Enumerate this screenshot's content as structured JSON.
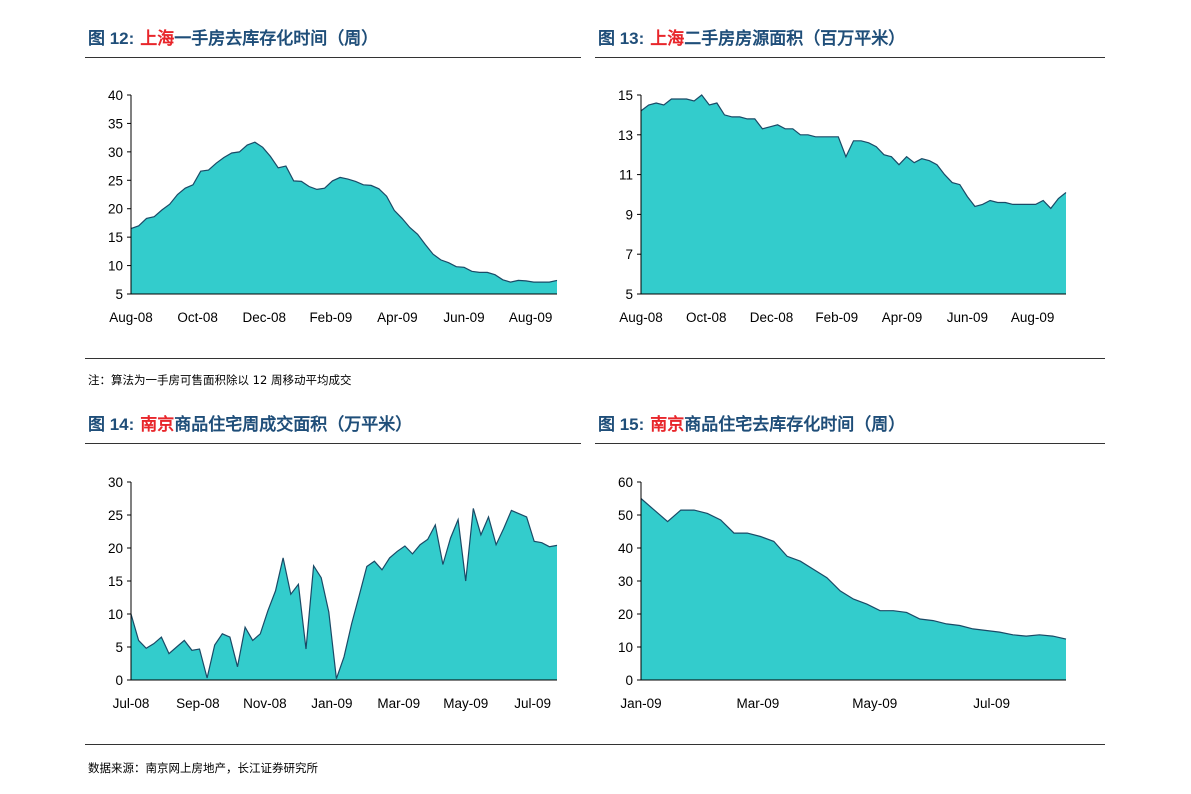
{
  "panels": [
    {
      "fig": "图 12:",
      "city": "上海",
      "rest": "一手房去库存化时间（周）"
    },
    {
      "fig": "图 13:",
      "city": "上海",
      "rest": "二手房房源面积（百万平米）"
    },
    {
      "fig": "图 14:",
      "city": "南京",
      "rest": "商品住宅周成交面积（万平米）"
    },
    {
      "fig": "图 15:",
      "city": "南京",
      "rest": "商品住宅去库存化时间（周）"
    }
  ],
  "notes": {
    "note1": "注：算法为一手房可售面积除以 12 周移动平均成交",
    "source": "数据来源：南京网上房地产，长江证券研究所"
  },
  "colors": {
    "fill": "#33cccc",
    "line": "#1a4a66",
    "title": "#1f4e79",
    "accent": "#e8262b"
  },
  "chart_data": [
    {
      "type": "area",
      "ylim": [
        5,
        40
      ],
      "yticks": [
        5,
        10,
        15,
        20,
        25,
        30,
        35,
        40
      ],
      "xtick_labels": [
        "Aug-08",
        "Oct-08",
        "Dec-08",
        "Feb-09",
        "Apr-09",
        "Jun-09",
        "Aug-09"
      ],
      "xtick_index": [
        0,
        8.6,
        17.2,
        25.8,
        34.4,
        43.0,
        51.6
      ],
      "values": [
        16.5,
        17,
        18.3,
        18.6,
        19.8,
        20.8,
        22.5,
        23.6,
        24.2,
        26.6,
        26.8,
        28,
        29,
        29.8,
        30,
        31.2,
        31.7,
        30.8,
        29.2,
        27.2,
        27.5,
        24.9,
        24.8,
        23.9,
        23.4,
        23.6,
        24.9,
        25.5,
        25.2,
        24.8,
        24.2,
        24.1,
        23.5,
        22.2,
        19.7,
        18.3,
        16.7,
        15.5,
        13.7,
        12,
        11,
        10.5,
        9.8,
        9.7,
        9,
        8.8,
        8.8,
        8.4,
        7.5,
        7.1,
        7.4,
        7.3,
        7.1,
        7.1,
        7.1,
        7.4
      ]
    },
    {
      "type": "area",
      "ylim": [
        5,
        15
      ],
      "yticks": [
        5,
        7,
        9,
        11,
        13,
        15
      ],
      "xtick_labels": [
        "Aug-08",
        "Oct-08",
        "Dec-08",
        "Feb-09",
        "Apr-09",
        "Jun-09",
        "Aug-09"
      ],
      "xtick_index": [
        0,
        8.6,
        17.2,
        25.8,
        34.4,
        43.0,
        51.6
      ],
      "values": [
        14.2,
        14.5,
        14.6,
        14.5,
        14.8,
        14.8,
        14.8,
        14.7,
        15,
        14.5,
        14.6,
        14,
        13.9,
        13.9,
        13.8,
        13.8,
        13.3,
        13.4,
        13.5,
        13.3,
        13.3,
        13,
        13,
        12.9,
        12.9,
        12.9,
        12.9,
        11.9,
        12.7,
        12.7,
        12.6,
        12.4,
        12,
        11.9,
        11.5,
        11.9,
        11.6,
        11.8,
        11.7,
        11.5,
        11,
        10.6,
        10.5,
        9.9,
        9.4,
        9.5,
        9.7,
        9.6,
        9.6,
        9.5,
        9.5,
        9.5,
        9.5,
        9.7,
        9.3,
        9.8,
        10.1
      ]
    },
    {
      "type": "area",
      "ylim": [
        0,
        30
      ],
      "yticks": [
        0,
        5,
        10,
        15,
        20,
        25,
        30
      ],
      "xtick_labels": [
        "Jul-08",
        "Sep-08",
        "Nov-08",
        "Jan-09",
        "Mar-09",
        "May-09",
        "Jul-09"
      ],
      "xtick_index": [
        0,
        8.8,
        17.6,
        26.4,
        35.2,
        44.0,
        52.8
      ],
      "values": [
        10,
        6,
        4.8,
        5.5,
        6.5,
        4,
        5,
        6,
        4.5,
        4.7,
        0.3,
        5.3,
        7,
        6.5,
        2,
        8,
        6,
        7,
        10.5,
        13.5,
        18.5,
        13,
        14.5,
        4.7,
        17.3,
        15.5,
        10.3,
        0.2,
        3.5,
        8.5,
        12.8,
        17.2,
        18,
        16.7,
        18.5,
        19.5,
        20.3,
        19.1,
        20.5,
        21.3,
        23.5,
        17.5,
        21.5,
        24.3,
        15,
        26,
        22,
        24.7,
        20.5,
        23,
        25.7,
        25.2,
        24.7,
        21,
        20.8,
        20.2,
        20.4
      ]
    },
    {
      "type": "area",
      "ylim": [
        0,
        60
      ],
      "yticks": [
        0,
        10,
        20,
        30,
        40,
        50,
        60
      ],
      "xtick_labels": [
        "Jan-09",
        "Mar-09",
        "May-09",
        "Jul-09"
      ],
      "xtick_index": [
        0,
        8.8,
        17.6,
        26.4
      ],
      "values": [
        55,
        51.5,
        48,
        51.5,
        51.5,
        50.5,
        48.5,
        44.5,
        44.5,
        43.5,
        42,
        37.5,
        36,
        33.5,
        31,
        27,
        24.5,
        23,
        21,
        21,
        20.5,
        18.5,
        18,
        17,
        16.5,
        15.5,
        15,
        14.5,
        13.7,
        13.3,
        13.7,
        13.3,
        12.4
      ]
    }
  ]
}
